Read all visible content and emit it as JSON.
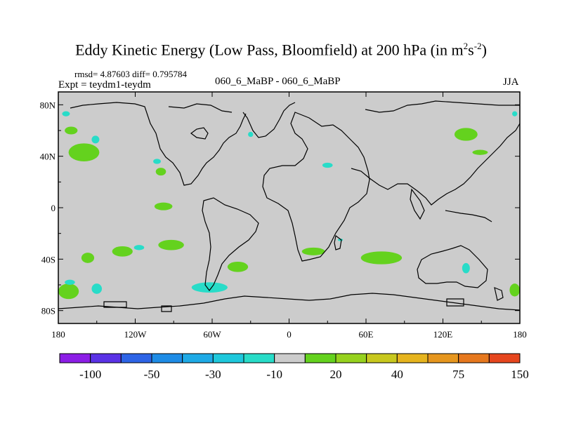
{
  "chart_data": {
    "type": "heatmap",
    "title": "Eddy Kinetic Energy (Low Pass, Bloomfield) at 200 hPa (in m",
    "title_units_sup1": "2",
    "title_units_mid": "s",
    "title_units_sup2": "-2",
    "title_units_end": ")",
    "stats_text": "rmsd= 4.87603 diff= 0.795784",
    "expt_text": "Expt = teydm1-teydm",
    "center_text": "060_6_MaBP - 060_6_MaBP",
    "season": "JJA",
    "x_ticks": [
      {
        "lon": -180,
        "label": "180"
      },
      {
        "lon": -120,
        "label": "120W"
      },
      {
        "lon": -60,
        "label": "60W"
      },
      {
        "lon": 0,
        "label": "0"
      },
      {
        "lon": 60,
        "label": "60E"
      },
      {
        "lon": 120,
        "label": "120E"
      },
      {
        "lon": 180,
        "label": "180"
      }
    ],
    "y_ticks": [
      {
        "lat": 80,
        "label": "80N"
      },
      {
        "lat": 40,
        "label": "40N"
      },
      {
        "lat": 0,
        "label": "0"
      },
      {
        "lat": -40,
        "label": "40S"
      },
      {
        "lat": -80,
        "label": "80S"
      }
    ],
    "xlim": [
      -180,
      180
    ],
    "ylim": [
      -90,
      90
    ],
    "colorbar": {
      "colors": [
        "#8c1ee6",
        "#5a32e6",
        "#2d64e6",
        "#1e8ce6",
        "#1eaae6",
        "#1ec8dc",
        "#28dcc8",
        "#cccccc",
        "#64d21e",
        "#96d21e",
        "#c8c81e",
        "#e6b41e",
        "#e6961e",
        "#e6781e",
        "#e6461e"
      ],
      "labels": [
        {
          "after_box": 1,
          "text": "-100"
        },
        {
          "after_box": 3,
          "text": "-50"
        },
        {
          "after_box": 5,
          "text": "-30"
        },
        {
          "after_box": 7,
          "text": "-10"
        },
        {
          "after_box": 9,
          "text": "20"
        },
        {
          "after_box": 11,
          "text": "40"
        },
        {
          "after_box": 13,
          "text": "75"
        },
        {
          "after_box": 15,
          "text": "150"
        }
      ]
    },
    "regions": [
      {
        "name": "positive-anomaly",
        "class": "20",
        "color": "#64d21e",
        "lon": -160,
        "lat": 43,
        "rlon": 12,
        "rlat": 7
      },
      {
        "name": "positive-anomaly",
        "class": "20",
        "color": "#64d21e",
        "lon": -170,
        "lat": 60,
        "rlon": 5,
        "rlat": 3
      },
      {
        "name": "positive-anomaly",
        "class": "20",
        "color": "#64d21e",
        "lon": -100,
        "lat": 28,
        "rlon": 4,
        "rlat": 3
      },
      {
        "name": "positive-anomaly",
        "class": "20",
        "color": "#64d21e",
        "lon": -98,
        "lat": 1,
        "rlon": 7,
        "rlat": 3
      },
      {
        "name": "positive-anomaly",
        "class": "20",
        "color": "#64d21e",
        "lon": -157,
        "lat": -39,
        "rlon": 5,
        "rlat": 4
      },
      {
        "name": "positive-anomaly",
        "class": "20",
        "color": "#64d21e",
        "lon": -130,
        "lat": -34,
        "rlon": 8,
        "rlat": 4
      },
      {
        "name": "positive-anomaly",
        "class": "20",
        "color": "#64d21e",
        "lon": -92,
        "lat": -29,
        "rlon": 10,
        "rlat": 4
      },
      {
        "name": "positive-anomaly",
        "class": "20",
        "color": "#64d21e",
        "lon": -172,
        "lat": -65,
        "rlon": 8,
        "rlat": 6
      },
      {
        "name": "positive-anomaly",
        "class": "20",
        "color": "#64d21e",
        "lon": -40,
        "lat": -46,
        "rlon": 8,
        "rlat": 4
      },
      {
        "name": "positive-anomaly",
        "class": "20",
        "color": "#64d21e",
        "lon": 19,
        "lat": -34,
        "rlon": 9,
        "rlat": 3
      },
      {
        "name": "positive-anomaly",
        "class": "20",
        "color": "#64d21e",
        "lon": 72,
        "lat": -39,
        "rlon": 16,
        "rlat": 5
      },
      {
        "name": "positive-anomaly",
        "class": "20",
        "color": "#64d21e",
        "lon": 138,
        "lat": 57,
        "rlon": 9,
        "rlat": 5
      },
      {
        "name": "positive-anomaly",
        "class": "20",
        "color": "#64d21e",
        "lon": 149,
        "lat": 43,
        "rlon": 6,
        "rlat": 2
      },
      {
        "name": "positive-anomaly",
        "class": "20",
        "color": "#64d21e",
        "lon": 176,
        "lat": -64,
        "rlon": 4,
        "rlat": 5
      },
      {
        "name": "negative-anomaly",
        "class": "-10",
        "color": "#28dcc8",
        "lon": -151,
        "lat": 53,
        "rlon": 3,
        "rlat": 3
      },
      {
        "name": "negative-anomaly",
        "class": "-10",
        "color": "#28dcc8",
        "lon": -103,
        "lat": 36,
        "rlon": 3,
        "rlat": 2
      },
      {
        "name": "negative-anomaly",
        "class": "-10",
        "color": "#28dcc8",
        "lon": -117,
        "lat": -31,
        "rlon": 4,
        "rlat": 2
      },
      {
        "name": "negative-anomaly",
        "class": "-10",
        "color": "#28dcc8",
        "lon": -171,
        "lat": -58,
        "rlon": 4,
        "rlat": 2
      },
      {
        "name": "negative-anomaly",
        "class": "-10",
        "color": "#28dcc8",
        "lon": -150,
        "lat": -63,
        "rlon": 4,
        "rlat": 4
      },
      {
        "name": "negative-anomaly",
        "class": "-10",
        "color": "#28dcc8",
        "lon": -62,
        "lat": -62,
        "rlon": 14,
        "rlat": 4
      },
      {
        "name": "negative-anomaly",
        "class": "-10",
        "color": "#28dcc8",
        "lon": -174,
        "lat": 73,
        "rlon": 3,
        "rlat": 2
      },
      {
        "name": "negative-anomaly",
        "class": "-10",
        "color": "#28dcc8",
        "lon": -30,
        "lat": 57,
        "rlon": 2,
        "rlat": 2
      },
      {
        "name": "negative-anomaly",
        "class": "-10",
        "color": "#28dcc8",
        "lon": 30,
        "lat": 33,
        "rlon": 4,
        "rlat": 2
      },
      {
        "name": "negative-anomaly",
        "class": "-10",
        "color": "#28dcc8",
        "lon": 138,
        "lat": -47,
        "rlon": 3,
        "rlat": 4
      },
      {
        "name": "negative-anomaly",
        "class": "-10",
        "color": "#28dcc8",
        "lon": 176,
        "lat": 73,
        "rlon": 2,
        "rlat": 2
      },
      {
        "name": "negative-anomaly",
        "class": "-10",
        "color": "#28dcc8",
        "lon": 40,
        "lat": -25,
        "rlon": 2,
        "rlat": 1
      }
    ]
  }
}
